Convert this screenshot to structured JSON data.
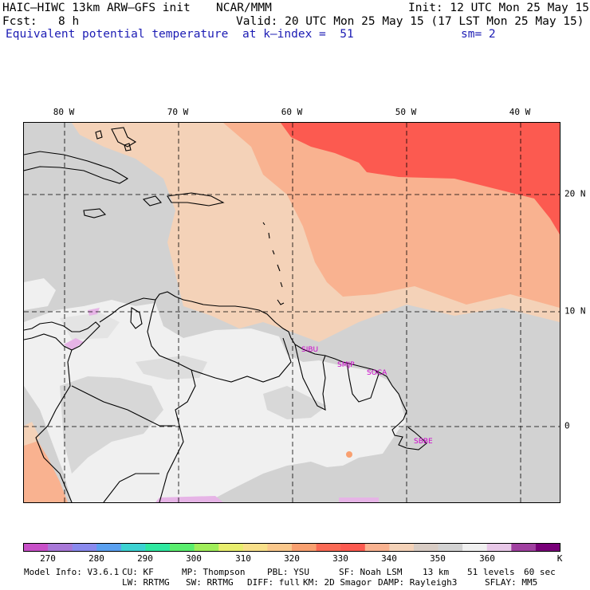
{
  "header": {
    "model": "HAIC–HIWC 13km ARW–GFS init",
    "org": "NCAR/MMM",
    "init": "Init: 12 UTC Mon 25 May 15",
    "fcst_label": "Fcst:",
    "fcst_value": "8 h",
    "valid": "Valid: 20 UTC Mon 25 May 15 (17 LST Mon 25 May 15)",
    "field": "Equivalent potential temperature",
    "level": "at k–index =  51",
    "smooth": "sm= 2"
  },
  "map": {
    "longitudes": [
      "80 W",
      "70 W",
      "60 W",
      "50 W",
      "40 W"
    ],
    "latitudes": [
      "20 N",
      "10 N",
      "0"
    ],
    "stations": [
      "SIBU",
      "SMJP",
      "SOCA",
      "SBBE"
    ],
    "colors": {
      "land_light": "#f0f0f0",
      "gray": "#d2d2d2",
      "tan": "#f4d2b8",
      "salmon": "#f9b290",
      "red": "#fc5a50",
      "station_label": "#cc00cc"
    }
  },
  "colorbar": {
    "labels": [
      "270",
      "280",
      "290",
      "300",
      "310",
      "320",
      "330",
      "340",
      "350",
      "360",
      "K"
    ],
    "colors": [
      "#c850c8",
      "#a878d8",
      "#8a8aee",
      "#5aa0f0",
      "#3cd2d2",
      "#2ee8a0",
      "#5aee6e",
      "#a0ee5a",
      "#e8ee6e",
      "#f8e08a",
      "#fac88c",
      "#f9a070",
      "#fa6a55",
      "#fc5a50",
      "#f9b290",
      "#f4d2b8",
      "#d8ccc4",
      "#d2d2d2",
      "#f0f0f0",
      "#e8c8e8",
      "#a040a0",
      "#780078"
    ]
  },
  "footer": {
    "line1": [
      "Model Info: V3.6.1",
      "CU: KF",
      "MP: Thompson",
      "PBL: YSU",
      "SF: Noah LSM",
      "13 km",
      "51 levels",
      "60 sec"
    ],
    "line2": [
      "LW: RRTMG",
      "SW: RRTMG",
      "DIFF: full",
      "KM: 2D Smagor",
      "DAMP: Rayleigh3",
      "SFLAY: MM5"
    ]
  }
}
